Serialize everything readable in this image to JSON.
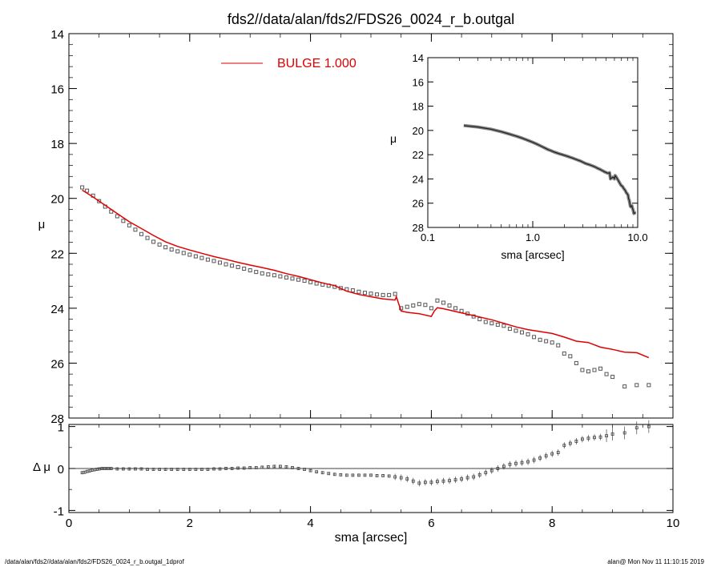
{
  "title": "fds2//data/alan/fds2/FDS26_0024_r_b.outgal",
  "footer_left": "/data/alan/fds2//data/alan/fds2/FDS26_0024_r_b.outgal_1dprof",
  "footer_right": "alan@  Mon Nov 11 11:10:15 2019",
  "colors": {
    "model": "#e00000",
    "data": "#555555",
    "residual": "#444444",
    "axis": "#000000"
  },
  "chart_data": [
    {
      "id": "main",
      "type": "scatter",
      "xlabel": "",
      "ylabel": "μ",
      "xlim": [
        0,
        10
      ],
      "ylim": [
        28,
        14
      ],
      "inverted_y": true,
      "xticks": [
        0,
        2,
        4,
        6,
        8,
        10
      ],
      "yticks": [
        14,
        16,
        18,
        20,
        22,
        24,
        26,
        28
      ],
      "legend": {
        "label": "BULGE  1.000",
        "position": "top-center"
      },
      "data_x": [
        0.22,
        0.3,
        0.4,
        0.5,
        0.6,
        0.7,
        0.8,
        0.9,
        1.0,
        1.1,
        1.2,
        1.3,
        1.4,
        1.5,
        1.6,
        1.7,
        1.8,
        1.9,
        2.0,
        2.1,
        2.2,
        2.3,
        2.4,
        2.5,
        2.6,
        2.7,
        2.8,
        2.9,
        3.0,
        3.1,
        3.2,
        3.3,
        3.4,
        3.5,
        3.6,
        3.7,
        3.8,
        3.9,
        4.0,
        4.1,
        4.2,
        4.3,
        4.4,
        4.5,
        4.6,
        4.7,
        4.8,
        4.9,
        5.0,
        5.1,
        5.2,
        5.3,
        5.4,
        5.5,
        5.6,
        5.7,
        5.8,
        5.9,
        6.0,
        6.1,
        6.2,
        6.3,
        6.4,
        6.5,
        6.6,
        6.7,
        6.8,
        6.9,
        7.0,
        7.1,
        7.2,
        7.3,
        7.4,
        7.5,
        7.6,
        7.7,
        7.8,
        7.9,
        8.0,
        8.1,
        8.2,
        8.3,
        8.4,
        8.5,
        8.6,
        8.7,
        8.8,
        8.9,
        9.0,
        9.2,
        9.4,
        9.6
      ],
      "data_y": [
        19.6,
        19.72,
        19.9,
        20.1,
        20.3,
        20.48,
        20.65,
        20.82,
        20.98,
        21.14,
        21.3,
        21.44,
        21.58,
        21.68,
        21.78,
        21.86,
        21.93,
        21.99,
        22.05,
        22.11,
        22.17,
        22.23,
        22.28,
        22.34,
        22.4,
        22.45,
        22.5,
        22.56,
        22.62,
        22.68,
        22.73,
        22.77,
        22.8,
        22.84,
        22.88,
        22.92,
        22.96,
        23.0,
        23.05,
        23.1,
        23.14,
        23.18,
        23.22,
        23.27,
        23.31,
        23.35,
        23.4,
        23.44,
        23.47,
        23.5,
        23.52,
        23.52,
        23.48,
        24.0,
        23.95,
        23.9,
        23.85,
        23.88,
        24.0,
        23.72,
        23.8,
        23.9,
        24.0,
        24.1,
        24.2,
        24.3,
        24.4,
        24.5,
        24.55,
        24.6,
        24.64,
        24.75,
        24.82,
        24.88,
        24.95,
        25.05,
        25.15,
        25.2,
        25.25,
        25.35,
        25.65,
        25.75,
        26.0,
        26.25,
        26.3,
        26.25,
        26.2,
        26.4,
        26.5,
        26.85,
        26.8,
        26.8
      ],
      "model_x": [
        0.22,
        0.4,
        0.6,
        0.8,
        1.0,
        1.2,
        1.4,
        1.6,
        1.8,
        2.0,
        2.2,
        2.4,
        2.6,
        2.8,
        3.0,
        3.2,
        3.4,
        3.6,
        3.8,
        4.0,
        4.2,
        4.4,
        4.6,
        4.8,
        5.0,
        5.2,
        5.4,
        5.42,
        5.5,
        5.6,
        5.8,
        6.0,
        6.05,
        6.1,
        6.2,
        6.4,
        6.6,
        6.8,
        7.0,
        7.2,
        7.4,
        7.6,
        7.8,
        8.0,
        8.2,
        8.4,
        8.6,
        8.8,
        9.0,
        9.2,
        9.4,
        9.6
      ],
      "model_y": [
        19.7,
        19.95,
        20.25,
        20.55,
        20.85,
        21.1,
        21.35,
        21.58,
        21.75,
        21.88,
        22.0,
        22.12,
        22.22,
        22.33,
        22.43,
        22.52,
        22.62,
        22.74,
        22.84,
        22.96,
        23.08,
        23.18,
        23.38,
        23.5,
        23.58,
        23.66,
        23.7,
        23.58,
        24.1,
        24.15,
        24.2,
        24.3,
        24.1,
        23.98,
        24.02,
        24.12,
        24.22,
        24.32,
        24.42,
        24.55,
        24.68,
        24.78,
        24.85,
        24.92,
        25.05,
        25.2,
        25.25,
        25.42,
        25.5,
        25.6,
        25.62,
        25.8
      ]
    },
    {
      "id": "inset",
      "type": "line",
      "xlabel": "sma [arcsec]",
      "ylabel": "μ",
      "x_scale": "log",
      "xlim": [
        0.1,
        10.0
      ],
      "ylim": [
        28,
        14
      ],
      "inverted_y": true,
      "xtick_labels": [
        "0.1",
        "1.0",
        "10.0"
      ],
      "yticks": [
        14,
        16,
        18,
        20,
        22,
        24,
        26,
        28
      ]
    },
    {
      "id": "residual",
      "type": "scatter",
      "xlabel": "sma [arcsec]",
      "ylabel": "Δ μ",
      "xlim": [
        0,
        10
      ],
      "ylim": [
        -1.05,
        1.05
      ],
      "xticks": [
        0,
        2,
        4,
        6,
        8,
        10
      ],
      "yticks": [
        -1,
        0,
        1
      ],
      "x": [
        0.22,
        0.26,
        0.3,
        0.34,
        0.38,
        0.42,
        0.46,
        0.5,
        0.55,
        0.6,
        0.65,
        0.7,
        0.8,
        0.9,
        1.0,
        1.1,
        1.2,
        1.3,
        1.4,
        1.5,
        1.6,
        1.7,
        1.8,
        1.9,
        2.0,
        2.1,
        2.2,
        2.3,
        2.4,
        2.5,
        2.6,
        2.7,
        2.8,
        2.9,
        3.0,
        3.1,
        3.2,
        3.3,
        3.4,
        3.5,
        3.6,
        3.7,
        3.8,
        3.9,
        4.0,
        4.1,
        4.2,
        4.3,
        4.4,
        4.5,
        4.6,
        4.7,
        4.8,
        4.9,
        5.0,
        5.1,
        5.2,
        5.3,
        5.4,
        5.5,
        5.6,
        5.7,
        5.8,
        5.9,
        6.0,
        6.1,
        6.2,
        6.3,
        6.4,
        6.5,
        6.6,
        6.7,
        6.8,
        6.9,
        7.0,
        7.1,
        7.2,
        7.3,
        7.4,
        7.5,
        7.6,
        7.7,
        7.8,
        7.9,
        8.0,
        8.1,
        8.2,
        8.3,
        8.4,
        8.5,
        8.6,
        8.7,
        8.8,
        8.9,
        9.0,
        9.2,
        9.4,
        9.6
      ],
      "values": [
        -0.1,
        -0.09,
        -0.07,
        -0.06,
        -0.04,
        -0.03,
        -0.02,
        -0.01,
        0.0,
        0.0,
        0.0,
        0.0,
        -0.01,
        -0.01,
        -0.01,
        -0.01,
        -0.01,
        -0.02,
        -0.02,
        -0.02,
        -0.02,
        -0.02,
        -0.02,
        -0.02,
        -0.02,
        -0.02,
        -0.02,
        -0.02,
        -0.01,
        -0.01,
        0.0,
        0.0,
        0.01,
        0.01,
        0.02,
        0.02,
        0.03,
        0.04,
        0.05,
        0.05,
        0.04,
        0.02,
        0.0,
        -0.02,
        -0.05,
        -0.08,
        -0.1,
        -0.12,
        -0.14,
        -0.15,
        -0.16,
        -0.16,
        -0.16,
        -0.16,
        -0.16,
        -0.17,
        -0.17,
        -0.18,
        -0.2,
        -0.22,
        -0.25,
        -0.3,
        -0.35,
        -0.33,
        -0.33,
        -0.31,
        -0.3,
        -0.29,
        -0.27,
        -0.25,
        -0.22,
        -0.2,
        -0.15,
        -0.1,
        -0.05,
        0.0,
        0.05,
        0.1,
        0.12,
        0.14,
        0.16,
        0.2,
        0.25,
        0.3,
        0.35,
        0.38,
        0.55,
        0.6,
        0.65,
        0.7,
        0.72,
        0.74,
        0.75,
        0.78,
        0.82,
        0.85,
        0.97,
        1.0
      ]
    }
  ]
}
